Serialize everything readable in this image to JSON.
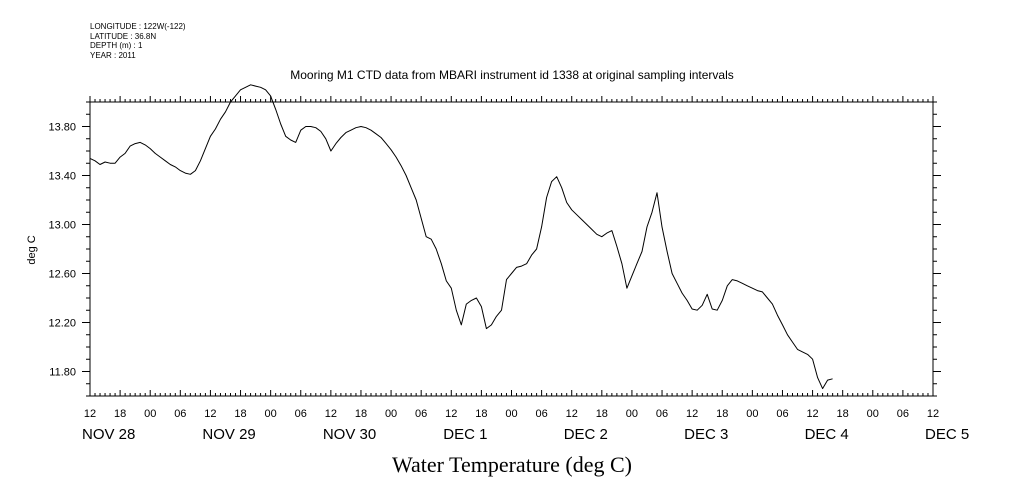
{
  "header": {
    "longitude": "LONGITUDE : 122W(-122)",
    "latitude": "LATITUDE : 36.8N",
    "depth": "DEPTH (m) : 1",
    "year": "YEAR : 2011"
  },
  "chart_data": {
    "type": "line",
    "title": "Mooring M1 CTD data from MBARI instrument id 1338 at original sampling intervals",
    "xlabel": "Water Temperature (deg C)",
    "ylabel": "deg C",
    "ylim": [
      11.6,
      14.0
    ],
    "y_ticks": [
      "11.80",
      "12.20",
      "12.60",
      "13.00",
      "13.40",
      "13.80"
    ],
    "x_range_hours": [
      0,
      168
    ],
    "x_hour_ticks": [
      "12",
      "18",
      "00",
      "06",
      "12",
      "18",
      "00",
      "06",
      "12",
      "18",
      "00",
      "06",
      "12",
      "18",
      "00",
      "06",
      "12",
      "18",
      "00",
      "06",
      "12",
      "18",
      "00",
      "06",
      "12",
      "18",
      "00",
      "06",
      "12"
    ],
    "x_day_labels": [
      {
        "label": "NOV 28",
        "hour": 0
      },
      {
        "label": "NOV 29",
        "hour": 24
      },
      {
        "label": "NOV 30",
        "hour": 48
      },
      {
        "label": "DEC  1",
        "hour": 72
      },
      {
        "label": "DEC  2",
        "hour": 96
      },
      {
        "label": "DEC  3",
        "hour": 120
      },
      {
        "label": "DEC  4",
        "hour": 144
      },
      {
        "label": "DEC  5",
        "hour": 168
      }
    ],
    "grid": false,
    "series": [
      {
        "values": [
          [
            0,
            13.54
          ],
          [
            1,
            13.52
          ],
          [
            2,
            13.49
          ],
          [
            3,
            13.51
          ],
          [
            4,
            13.5
          ],
          [
            5,
            13.5
          ],
          [
            6,
            13.55
          ],
          [
            7,
            13.58
          ],
          [
            8,
            13.64
          ],
          [
            9,
            13.66
          ],
          [
            10,
            13.67
          ],
          [
            11,
            13.65
          ],
          [
            12,
            13.62
          ],
          [
            13,
            13.58
          ],
          [
            14,
            13.55
          ],
          [
            15,
            13.52
          ],
          [
            16,
            13.49
          ],
          [
            17,
            13.47
          ],
          [
            18,
            13.44
          ],
          [
            19,
            13.42
          ],
          [
            20,
            13.41
          ],
          [
            21,
            13.44
          ],
          [
            22,
            13.52
          ],
          [
            23,
            13.62
          ],
          [
            24,
            13.72
          ],
          [
            25,
            13.78
          ],
          [
            26,
            13.86
          ],
          [
            27,
            13.92
          ],
          [
            28,
            14.0
          ],
          [
            29,
            14.05
          ],
          [
            30,
            14.1
          ],
          [
            31,
            14.12
          ],
          [
            32,
            14.14
          ],
          [
            33,
            14.13
          ],
          [
            34,
            14.12
          ],
          [
            35,
            14.1
          ],
          [
            36,
            14.05
          ],
          [
            37,
            13.94
          ],
          [
            38,
            13.82
          ],
          [
            39,
            13.72
          ],
          [
            40,
            13.69
          ],
          [
            41,
            13.67
          ],
          [
            42,
            13.77
          ],
          [
            43,
            13.8
          ],
          [
            44,
            13.8
          ],
          [
            45,
            13.79
          ],
          [
            46,
            13.76
          ],
          [
            47,
            13.7
          ],
          [
            48,
            13.6
          ],
          [
            49,
            13.66
          ],
          [
            50,
            13.71
          ],
          [
            51,
            13.75
          ],
          [
            52,
            13.77
          ],
          [
            53,
            13.79
          ],
          [
            54,
            13.8
          ],
          [
            55,
            13.79
          ],
          [
            56,
            13.77
          ],
          [
            57,
            13.74
          ],
          [
            58,
            13.71
          ],
          [
            59,
            13.66
          ],
          [
            60,
            13.61
          ],
          [
            61,
            13.55
          ],
          [
            62,
            13.48
          ],
          [
            63,
            13.4
          ],
          [
            64,
            13.3
          ],
          [
            65,
            13.2
          ],
          [
            66,
            13.05
          ],
          [
            67,
            12.9
          ],
          [
            68,
            12.88
          ],
          [
            69,
            12.8
          ],
          [
            70,
            12.68
          ],
          [
            71,
            12.54
          ],
          [
            72,
            12.48
          ],
          [
            73,
            12.3
          ],
          [
            74,
            12.18
          ],
          [
            75,
            12.35
          ],
          [
            76,
            12.38
          ],
          [
            77,
            12.4
          ],
          [
            78,
            12.33
          ],
          [
            79,
            12.15
          ],
          [
            80,
            12.18
          ],
          [
            81,
            12.25
          ],
          [
            82,
            12.3
          ],
          [
            83,
            12.55
          ],
          [
            84,
            12.6
          ],
          [
            85,
            12.65
          ],
          [
            86,
            12.66
          ],
          [
            87,
            12.68
          ],
          [
            88,
            12.75
          ],
          [
            89,
            12.8
          ],
          [
            90,
            12.98
          ],
          [
            91,
            13.22
          ],
          [
            92,
            13.35
          ],
          [
            93,
            13.39
          ],
          [
            94,
            13.3
          ],
          [
            95,
            13.18
          ],
          [
            96,
            13.12
          ],
          [
            97,
            13.08
          ],
          [
            98,
            13.04
          ],
          [
            99,
            13.0
          ],
          [
            100,
            12.96
          ],
          [
            101,
            12.92
          ],
          [
            102,
            12.9
          ],
          [
            103,
            12.93
          ],
          [
            104,
            12.95
          ],
          [
            105,
            12.82
          ],
          [
            106,
            12.68
          ],
          [
            107,
            12.48
          ],
          [
            108,
            12.58
          ],
          [
            109,
            12.68
          ],
          [
            110,
            12.78
          ],
          [
            111,
            12.98
          ],
          [
            112,
            13.1
          ],
          [
            113,
            13.26
          ],
          [
            114,
            12.98
          ],
          [
            115,
            12.78
          ],
          [
            116,
            12.6
          ],
          [
            117,
            12.52
          ],
          [
            118,
            12.44
          ],
          [
            119,
            12.38
          ],
          [
            120,
            12.31
          ],
          [
            121,
            12.3
          ],
          [
            122,
            12.34
          ],
          [
            123,
            12.43
          ],
          [
            124,
            12.31
          ],
          [
            125,
            12.3
          ],
          [
            126,
            12.38
          ],
          [
            127,
            12.5
          ],
          [
            128,
            12.55
          ],
          [
            129,
            12.54
          ],
          [
            130,
            12.52
          ],
          [
            131,
            12.5
          ],
          [
            132,
            12.48
          ],
          [
            133,
            12.46
          ],
          [
            134,
            12.45
          ],
          [
            135,
            12.4
          ],
          [
            136,
            12.35
          ],
          [
            137,
            12.26
          ],
          [
            138,
            12.18
          ],
          [
            139,
            12.1
          ],
          [
            140,
            12.04
          ],
          [
            141,
            11.98
          ],
          [
            142,
            11.96
          ],
          [
            143,
            11.94
          ],
          [
            144,
            11.9
          ],
          [
            145,
            11.75
          ],
          [
            146,
            11.66
          ],
          [
            147,
            11.73
          ],
          [
            148,
            11.74
          ]
        ]
      }
    ]
  }
}
